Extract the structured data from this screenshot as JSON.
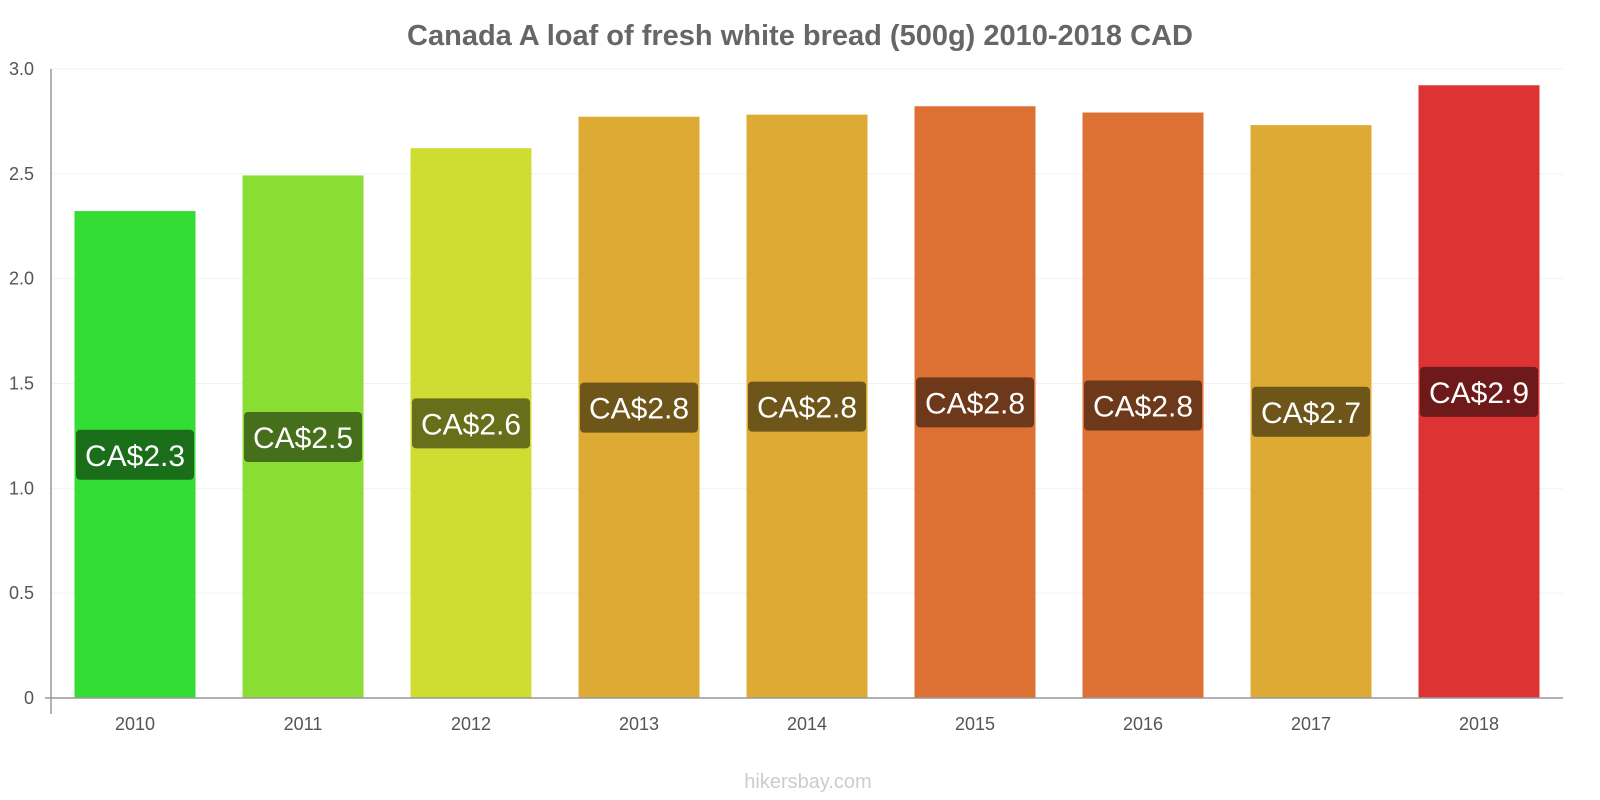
{
  "title": "Canada A loaf of fresh white bread (500g) 2010-2018 CAD",
  "footer": "hikersbay.com",
  "chart_data": {
    "type": "bar",
    "title": "Canada A loaf of fresh white bread (500g) 2010-2018 CAD",
    "xlabel": "",
    "ylabel": "",
    "categories": [
      "2010",
      "2011",
      "2012",
      "2013",
      "2014",
      "2015",
      "2016",
      "2017",
      "2018"
    ],
    "values": [
      2.32,
      2.49,
      2.62,
      2.77,
      2.78,
      2.82,
      2.79,
      2.73,
      2.92
    ],
    "data_labels": [
      "CA$2.3",
      "CA$2.5",
      "CA$2.6",
      "CA$2.8",
      "CA$2.8",
      "CA$2.8",
      "CA$2.8",
      "CA$2.7",
      "CA$2.9"
    ],
    "bar_colors": [
      "#33dd33",
      "#8ade33",
      "#cfdd33",
      "#ddaa33",
      "#ddaa33",
      "#dd7033",
      "#dd7033",
      "#ddaa33",
      "#dd3333"
    ],
    "label_bg_colors": [
      "#1a6e1a",
      "#456f1a",
      "#686f1a",
      "#6e551a",
      "#6e551a",
      "#6e381a",
      "#6e381a",
      "#6e551a",
      "#6e1a1a"
    ],
    "ylim": [
      0,
      3.0
    ],
    "yticks": [
      0,
      0.5,
      1.0,
      1.5,
      2.0,
      2.5,
      3.0
    ],
    "ytick_labels": [
      "0",
      "0.5",
      "1.0",
      "1.5",
      "2.0",
      "2.5",
      "3.0"
    ],
    "grid": true,
    "legend": "none"
  }
}
